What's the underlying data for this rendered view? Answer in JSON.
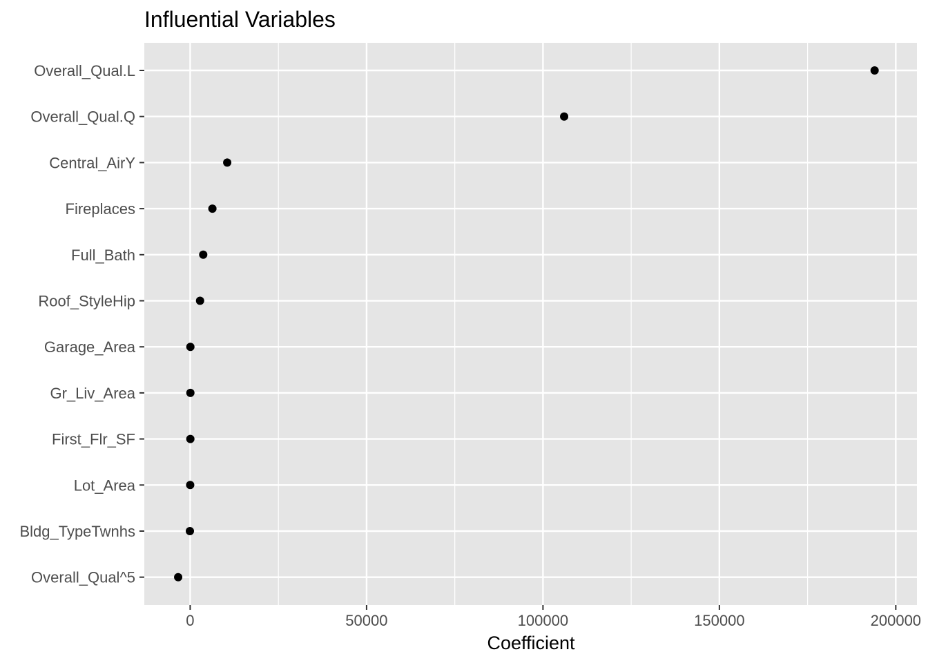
{
  "chart_data": {
    "type": "scatter",
    "title": "Influential Variables",
    "xlabel": "Coefficient",
    "ylabel": "",
    "xlim": [
      -13000,
      206000
    ],
    "x_ticks": [
      0,
      50000,
      100000,
      150000,
      200000
    ],
    "x_tick_labels": [
      "0",
      "50000",
      "100000",
      "150000",
      "200000"
    ],
    "categories": [
      "Overall_Qual.L",
      "Overall_Qual.Q",
      "Central_AirY",
      "Fireplaces",
      "Full_Bath",
      "Roof_StyleHip",
      "Garage_Area",
      "Gr_Liv_Area",
      "First_Flr_SF",
      "Lot_Area",
      "Bldg_TypeTwnhs",
      "Overall_Qual^5"
    ],
    "values": [
      194000,
      106000,
      10500,
      6300,
      3700,
      2800,
      60,
      60,
      50,
      5,
      -80,
      -3400
    ],
    "grid": true,
    "panel_background": "#e5e5e5",
    "grid_color": "#ffffff",
    "point_color": "#000000",
    "legend": "none"
  }
}
